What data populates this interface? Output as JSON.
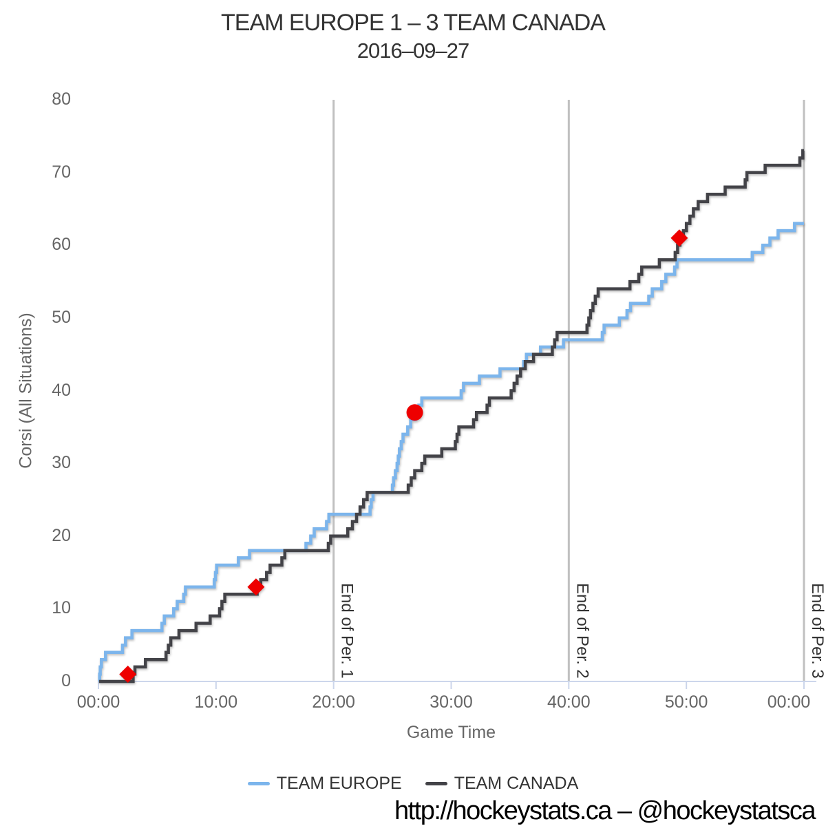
{
  "credit": "http://hockeystats.ca – @hockeystatsca",
  "chart_data": {
    "type": "line",
    "step": "after",
    "title": "TEAM EUROPE 1 – 3 TEAM CANADA",
    "subtitle": "2016–09–27",
    "xlabel": "Game Time",
    "ylabel": "Corsi (All Situations)",
    "xlim": [
      0,
      60
    ],
    "ylim": [
      0,
      80
    ],
    "grid": "off",
    "legend_position": "bottom",
    "colors": {
      "axis_line": "#ccd6eb",
      "period_line": "#c0c0c0",
      "tick_text": "#666666",
      "title_text": "#333333",
      "goal_marker": "#ee0000"
    },
    "y_ticks": [
      0,
      10,
      20,
      30,
      40,
      50,
      60,
      70,
      80
    ],
    "x_ticks": [
      {
        "t": 0,
        "label": "00:00"
      },
      {
        "t": 10,
        "label": "10:00"
      },
      {
        "t": 20,
        "label": "20:00"
      },
      {
        "t": 30,
        "label": "30:00"
      },
      {
        "t": 40,
        "label": "40:00"
      },
      {
        "t": 50,
        "label": "50:00"
      },
      {
        "t": 60,
        "label": "00:00"
      }
    ],
    "period_lines": [
      {
        "t": 20,
        "label": "End of Per. 1"
      },
      {
        "t": 40,
        "label": "End of Per. 2"
      },
      {
        "t": 60,
        "label": "End of Per. 3"
      }
    ],
    "series": [
      {
        "name": "TEAM EUROPE",
        "color": "#7cb5ec",
        "final_value": 63,
        "points": [
          [
            0.05,
            0
          ],
          [
            0.1,
            1
          ],
          [
            0.15,
            2
          ],
          [
            0.25,
            3
          ],
          [
            0.6,
            4
          ],
          [
            2.05,
            5
          ],
          [
            2.3,
            6
          ],
          [
            2.85,
            7
          ],
          [
            5.4,
            8
          ],
          [
            5.6,
            9
          ],
          [
            6.4,
            10
          ],
          [
            6.7,
            11
          ],
          [
            7.25,
            12
          ],
          [
            7.4,
            13
          ],
          [
            9.85,
            14
          ],
          [
            9.95,
            15
          ],
          [
            10.05,
            16
          ],
          [
            11.9,
            17
          ],
          [
            12.85,
            18
          ],
          [
            17.65,
            19
          ],
          [
            18.05,
            20
          ],
          [
            18.35,
            21
          ],
          [
            19.4,
            22
          ],
          [
            19.6,
            23
          ],
          [
            23.1,
            24
          ],
          [
            23.2,
            25
          ],
          [
            23.35,
            26
          ],
          [
            25.0,
            27
          ],
          [
            25.1,
            28
          ],
          [
            25.25,
            29
          ],
          [
            25.4,
            30
          ],
          [
            25.5,
            31
          ],
          [
            25.6,
            32
          ],
          [
            25.75,
            33
          ],
          [
            25.9,
            34
          ],
          [
            26.3,
            35
          ],
          [
            26.55,
            36
          ],
          [
            26.95,
            37
          ],
          [
            27.25,
            38
          ],
          [
            27.5,
            39
          ],
          [
            30.85,
            40
          ],
          [
            31.05,
            41
          ],
          [
            32.4,
            42
          ],
          [
            34.15,
            43
          ],
          [
            36.15,
            44
          ],
          [
            36.4,
            45
          ],
          [
            37.6,
            46
          ],
          [
            39.55,
            47
          ],
          [
            42.85,
            48
          ],
          [
            43.0,
            49
          ],
          [
            44.3,
            50
          ],
          [
            44.95,
            51
          ],
          [
            45.25,
            52
          ],
          [
            46.8,
            53
          ],
          [
            47.1,
            54
          ],
          [
            47.9,
            55
          ],
          [
            48.25,
            56
          ],
          [
            49.0,
            57
          ],
          [
            49.2,
            58
          ],
          [
            55.6,
            59
          ],
          [
            56.5,
            60
          ],
          [
            57.1,
            61
          ],
          [
            57.8,
            62
          ],
          [
            59.2,
            63
          ]
        ]
      },
      {
        "name": "TEAM CANADA",
        "color": "#434348",
        "final_value": 73,
        "points": [
          [
            0.05,
            0
          ],
          [
            2.95,
            1
          ],
          [
            3.1,
            2
          ],
          [
            4.0,
            3
          ],
          [
            5.75,
            4
          ],
          [
            5.95,
            5
          ],
          [
            6.15,
            6
          ],
          [
            6.85,
            7
          ],
          [
            8.3,
            8
          ],
          [
            9.5,
            9
          ],
          [
            10.3,
            10
          ],
          [
            10.5,
            11
          ],
          [
            10.75,
            12
          ],
          [
            13.5,
            13
          ],
          [
            13.8,
            14
          ],
          [
            14.3,
            15
          ],
          [
            14.6,
            16
          ],
          [
            15.6,
            17
          ],
          [
            15.85,
            18
          ],
          [
            19.55,
            19
          ],
          [
            19.75,
            20
          ],
          [
            21.2,
            21
          ],
          [
            21.6,
            22
          ],
          [
            21.95,
            23
          ],
          [
            22.25,
            24
          ],
          [
            22.55,
            25
          ],
          [
            22.85,
            26
          ],
          [
            26.35,
            27
          ],
          [
            26.6,
            28
          ],
          [
            26.9,
            29
          ],
          [
            27.5,
            30
          ],
          [
            27.75,
            31
          ],
          [
            29.2,
            32
          ],
          [
            30.35,
            33
          ],
          [
            30.5,
            34
          ],
          [
            30.65,
            35
          ],
          [
            31.9,
            36
          ],
          [
            32.15,
            37
          ],
          [
            33.05,
            38
          ],
          [
            33.25,
            39
          ],
          [
            35.1,
            40
          ],
          [
            35.35,
            41
          ],
          [
            35.6,
            42
          ],
          [
            35.9,
            43
          ],
          [
            36.3,
            44
          ],
          [
            37.0,
            45
          ],
          [
            38.6,
            46
          ],
          [
            38.8,
            47
          ],
          [
            39.0,
            48
          ],
          [
            41.55,
            49
          ],
          [
            41.7,
            50
          ],
          [
            41.85,
            51
          ],
          [
            42.05,
            52
          ],
          [
            42.25,
            53
          ],
          [
            42.5,
            54
          ],
          [
            45.2,
            55
          ],
          [
            45.95,
            56
          ],
          [
            46.2,
            57
          ],
          [
            47.7,
            58
          ],
          [
            49.05,
            59
          ],
          [
            49.25,
            60
          ],
          [
            49.45,
            61
          ],
          [
            49.75,
            62
          ],
          [
            50.0,
            63
          ],
          [
            50.3,
            64
          ],
          [
            50.6,
            65
          ],
          [
            51.0,
            66
          ],
          [
            51.8,
            67
          ],
          [
            53.3,
            68
          ],
          [
            55.0,
            69
          ],
          [
            55.15,
            70
          ],
          [
            56.7,
            71
          ],
          [
            59.65,
            72
          ],
          [
            59.9,
            73
          ]
        ]
      }
    ],
    "goal_markers": [
      {
        "team": "TEAM CANADA",
        "shape": "diamond",
        "t": 2.5,
        "value": 1
      },
      {
        "team": "TEAM CANADA",
        "shape": "diamond",
        "t": 13.4,
        "value": 13
      },
      {
        "team": "TEAM EUROPE",
        "shape": "circle",
        "t": 26.9,
        "value": 37
      },
      {
        "team": "TEAM CANADA",
        "shape": "diamond",
        "t": 49.4,
        "value": 61
      }
    ]
  }
}
